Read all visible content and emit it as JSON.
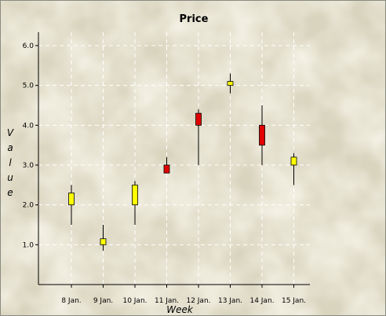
{
  "chart_data": {
    "type": "candlestick",
    "title": "Price",
    "xlabel": "Week",
    "ylabel": "Value",
    "ylim": [
      0,
      6.0
    ],
    "yticks": [
      1.0,
      2.0,
      3.0,
      4.0,
      5.0,
      6.0
    ],
    "grid": true,
    "categories": [
      "8 Jan.",
      "9 Jan.",
      "10 Jan.",
      "11 Jan.",
      "12 Jan.",
      "13 Jan.",
      "14 Jan.",
      "15 Jan."
    ],
    "series": [
      {
        "open": [
          2.0,
          1.0,
          2.0,
          3.0,
          4.3,
          5.0,
          4.0,
          3.0
        ],
        "close": [
          2.3,
          1.15,
          2.5,
          2.8,
          4.0,
          5.1,
          3.5,
          3.2
        ],
        "high": [
          2.5,
          1.5,
          2.6,
          3.2,
          4.4,
          5.3,
          4.5,
          3.3
        ],
        "low": [
          1.5,
          0.85,
          1.5,
          2.8,
          3.0,
          4.8,
          3.0,
          2.5
        ]
      }
    ],
    "colors": {
      "up": "#ffff00",
      "down": "#e00000",
      "outline": "#000000",
      "grid": "#ffffff"
    }
  }
}
